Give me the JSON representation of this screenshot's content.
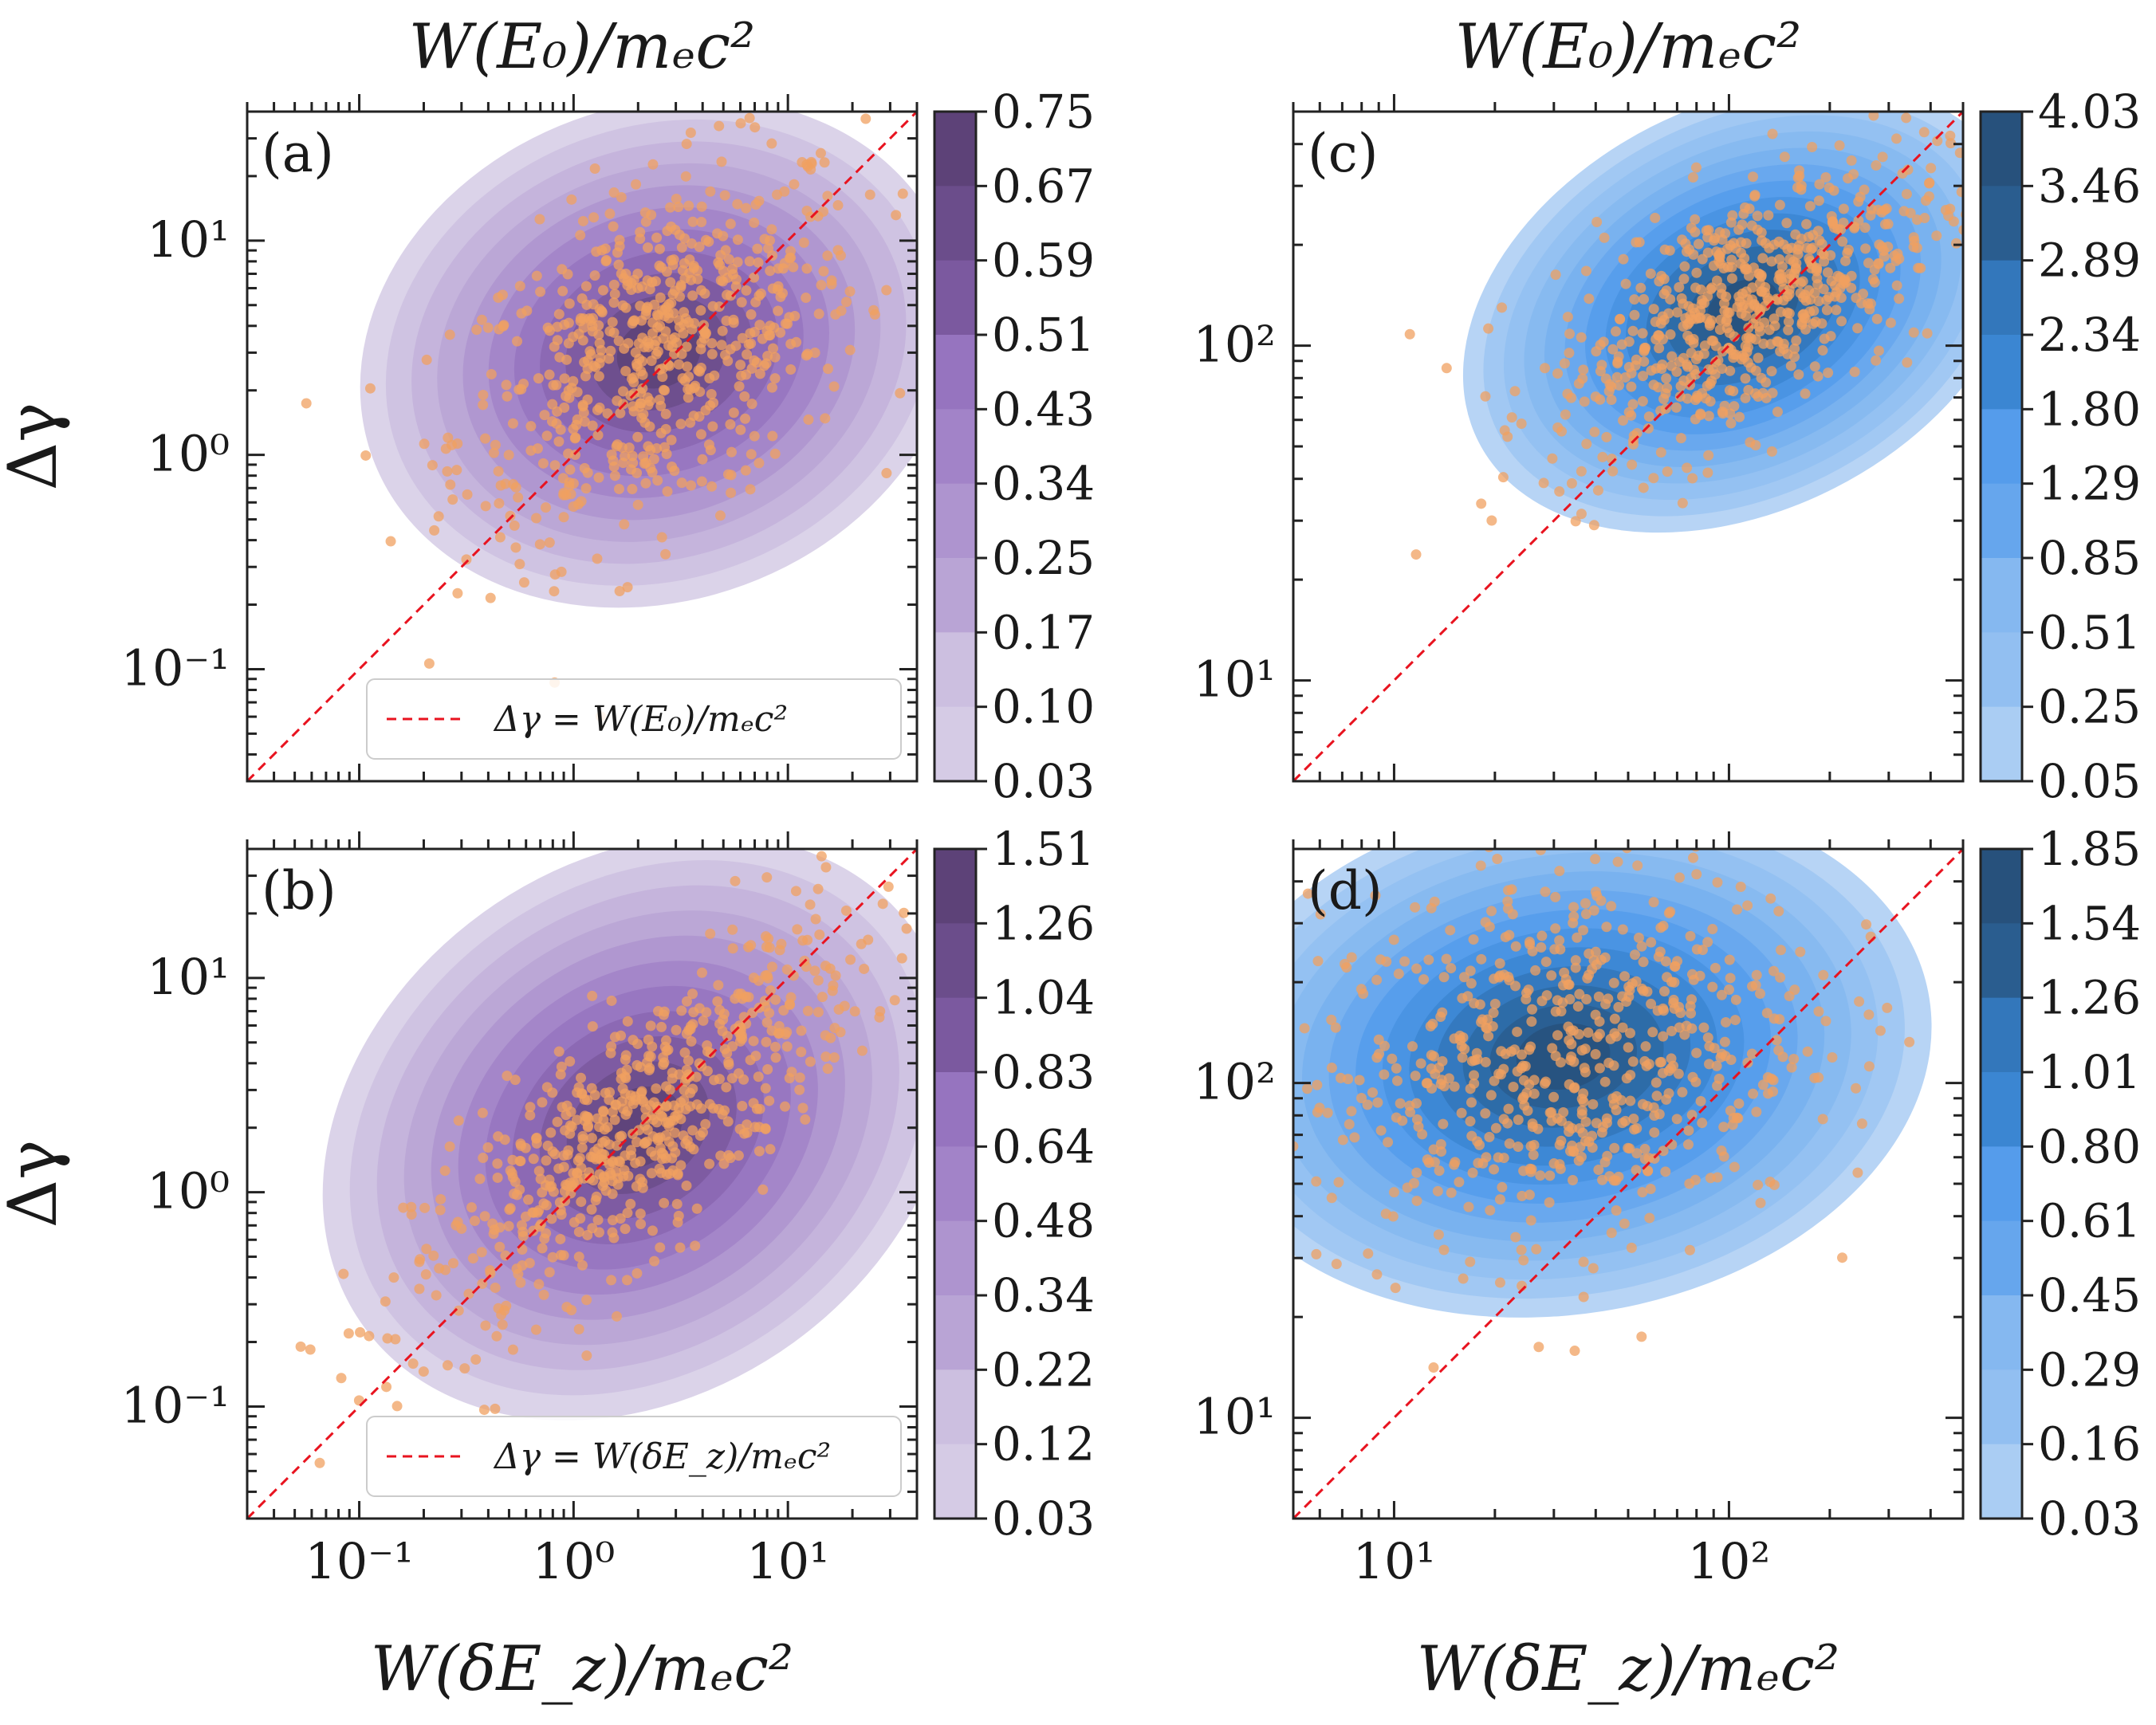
{
  "figure": {
    "top_axis_title": "W(E₀)/mₑc²",
    "bottom_axis_title": "W(δE_z)/mₑc²",
    "y_axis_title": "Δγ"
  },
  "colors": {
    "purple_scale": [
      "#d5cbe5",
      "#ccbfe0",
      "#c3b2db",
      "#b9a4d5",
      "#ae94cf",
      "#a283c8",
      "#9674bf",
      "#8966b1",
      "#7b599f",
      "#6b4d8b",
      "#5d4278"
    ],
    "blue_scale": [
      "#aacdf3",
      "#9ec6f2",
      "#92bff1",
      "#85b8f0",
      "#77b0ef",
      "#66a6ed",
      "#559ceb",
      "#4892e2",
      "#3b86d2",
      "#3377bb",
      "#2d6aa3",
      "#2a5d8f",
      "#27517c"
    ],
    "scatter": "#f0a060",
    "diagonal": "#e8131f"
  },
  "chart_data": [
    {
      "panel": "(a)",
      "type": "scatter",
      "overlay": "kde-contour",
      "xscale": "log",
      "yscale": "log",
      "xlim": [
        0.03,
        40
      ],
      "ylim": [
        0.03,
        40
      ],
      "top_xlabel": "W(E₀)/mₑc²",
      "xlabel": "",
      "ylabel": "Δγ",
      "yticks": [
        "10⁻¹",
        "10⁰",
        "10¹"
      ],
      "xticks": [],
      "colorbar_ticks": [
        "0.75",
        "0.67",
        "0.59",
        "0.51",
        "0.43",
        "0.34",
        "0.25",
        "0.17",
        "0.10",
        "0.03"
      ],
      "legend": "Δγ = W(E₀)/mₑc²",
      "legend_loc": "lower-right",
      "reference_line": "y = x",
      "kde_center": [
        2.5,
        3.0
      ],
      "kde_spread_decades": [
        0.45,
        0.42
      ],
      "kde_correlation": 0.45,
      "scatter_points": 650
    },
    {
      "panel": "(b)",
      "type": "scatter",
      "overlay": "kde-contour",
      "xscale": "log",
      "yscale": "log",
      "xlim": [
        0.03,
        40
      ],
      "ylim": [
        0.03,
        40
      ],
      "xlabel": "W(δE_z)/mₑc²",
      "ylabel": "Δγ",
      "yticks": [
        "10⁻¹",
        "10⁰",
        "10¹"
      ],
      "xticks": [
        "10⁻¹",
        "10⁰",
        "10¹"
      ],
      "colorbar_ticks": [
        "1.51",
        "1.26",
        "1.04",
        "0.83",
        "0.64",
        "0.48",
        "0.34",
        "0.22",
        "0.12",
        "0.03"
      ],
      "legend": "Δγ = W(δE_z)/mₑc²",
      "legend_loc": "lower-right",
      "reference_line": "y = x",
      "kde_center": [
        2.0,
        2.0
      ],
      "kde_spread_decades": [
        0.5,
        0.45
      ],
      "kde_correlation": 0.8,
      "scatter_points": 650
    },
    {
      "panel": "(c)",
      "type": "scatter",
      "overlay": "kde-contour",
      "xscale": "log",
      "yscale": "log",
      "xlim": [
        5,
        500
      ],
      "ylim": [
        5,
        500
      ],
      "top_xlabel": "W(E₀)/mₑc²",
      "xlabel": "",
      "ylabel": "",
      "yticks": [
        "10¹",
        "10²"
      ],
      "xticks": [],
      "colorbar_ticks": [
        "4.03",
        "3.46",
        "2.89",
        "2.34",
        "1.80",
        "1.29",
        "0.85",
        "0.51",
        "0.25",
        "0.05"
      ],
      "reference_line": "y = x",
      "kde_center": [
        110,
        130
      ],
      "kde_spread_decades": [
        0.28,
        0.22
      ],
      "kde_correlation": 0.6,
      "scatter_points": 650
    },
    {
      "panel": "(d)",
      "type": "scatter",
      "overlay": "kde-contour",
      "xscale": "log",
      "yscale": "log",
      "xlim": [
        5,
        500
      ],
      "ylim": [
        5,
        500
      ],
      "xlabel": "W(δE_z)/mₑc²",
      "ylabel": "",
      "yticks": [
        "10¹",
        "10²"
      ],
      "xticks": [
        "10¹",
        "10²"
      ],
      "colorbar_ticks": [
        "1.85",
        "1.54",
        "1.26",
        "1.01",
        "0.80",
        "0.61",
        "0.45",
        "0.29",
        "0.16",
        "0.03"
      ],
      "reference_line": "y = x",
      "kde_center": [
        32,
        120
      ],
      "kde_spread_decades": [
        0.35,
        0.28
      ],
      "kde_correlation": 0.2,
      "scatter_points": 650
    }
  ]
}
